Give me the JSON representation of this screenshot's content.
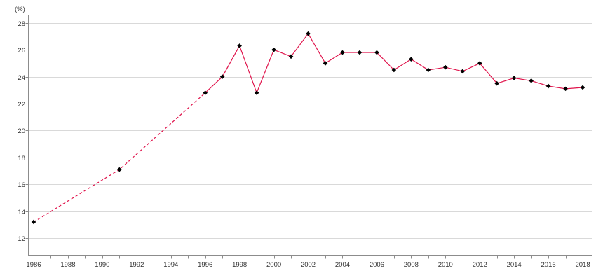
{
  "chart_data": {
    "type": "line",
    "title": "",
    "ylabel": "(%)",
    "xlabel": "",
    "x_range": [
      1986,
      2018
    ],
    "y_range": [
      12,
      28
    ],
    "y_tick_step": 2,
    "x_label_step": 2,
    "x_minor_tick_step": 1,
    "grid": true,
    "legend": "none",
    "y_tick_labels": [
      "12",
      "14",
      "16",
      "18",
      "20",
      "22",
      "24",
      "26",
      "28"
    ],
    "x_tick_labels": [
      "1986",
      "1988",
      "1990",
      "1992",
      "1994",
      "1996",
      "1998",
      "2000",
      "2002",
      "2004",
      "2006",
      "2008",
      "2010",
      "2012",
      "2014",
      "2016",
      "2018"
    ],
    "series": [
      {
        "name": "percentage-series",
        "marker": "black-diamond",
        "line_style": "dashed through 1996, solid afterwards",
        "dashed_through_year": 1996,
        "points": [
          [
            1986,
            13.2
          ],
          [
            1991,
            17.1
          ],
          [
            1996,
            22.8
          ],
          [
            1997,
            24.0
          ],
          [
            1998,
            26.3
          ],
          [
            1999,
            22.8
          ],
          [
            2000,
            26.0
          ],
          [
            2001,
            25.5
          ],
          [
            2002,
            27.2
          ],
          [
            2003,
            25.0
          ],
          [
            2004,
            25.8
          ],
          [
            2005,
            25.8
          ],
          [
            2006,
            25.8
          ],
          [
            2007,
            24.5
          ],
          [
            2008,
            25.3
          ],
          [
            2009,
            24.5
          ],
          [
            2010,
            24.7
          ],
          [
            2011,
            24.4
          ],
          [
            2012,
            25.0
          ],
          [
            2013,
            23.5
          ],
          [
            2014,
            23.9
          ],
          [
            2015,
            23.7
          ],
          [
            2016,
            23.3
          ],
          [
            2017,
            23.1
          ],
          [
            2018,
            23.2
          ]
        ]
      }
    ],
    "colors": {
      "line": "#e0144c",
      "marker": "#000000",
      "grid": "#d9d9d9",
      "axis": "#8c8c8c",
      "tick_text": "#333333",
      "background": "#ffffff"
    }
  }
}
